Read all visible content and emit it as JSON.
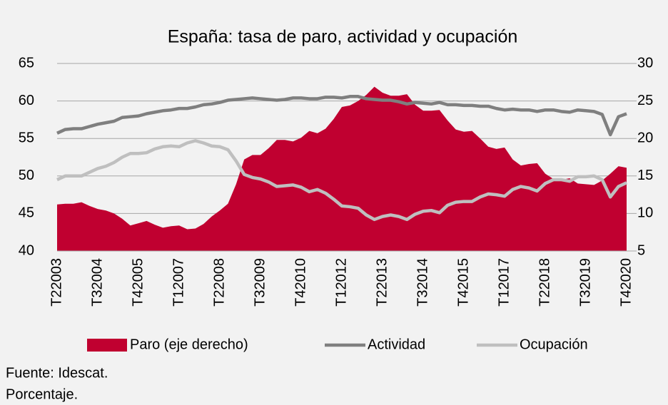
{
  "chart_data": {
    "type": "area-line",
    "title": "España: tasa de paro, actividad y ocupación",
    "categories": [
      "T22003",
      null,
      null,
      null,
      null,
      "T32004",
      null,
      null,
      null,
      null,
      "T42005",
      null,
      null,
      null,
      null,
      "T12007",
      null,
      null,
      null,
      null,
      "T22008",
      null,
      null,
      null,
      null,
      "T32009",
      null,
      null,
      null,
      null,
      "T42010",
      null,
      null,
      null,
      null,
      "T12012",
      null,
      null,
      null,
      null,
      "T22013",
      null,
      null,
      null,
      null,
      "T32014",
      null,
      null,
      null,
      null,
      "T42015",
      null,
      null,
      null,
      null,
      "T12017",
      null,
      null,
      null,
      null,
      "T22018",
      null,
      null,
      null,
      null,
      "T32019",
      null,
      null,
      null,
      null,
      "T42020"
    ],
    "series": [
      {
        "name": "Paro (eje derecho)",
        "kind": "area",
        "axis": "y2",
        "color": "#c00030",
        "values": [
          11.2,
          11.3,
          11.3,
          11.5,
          11.0,
          10.6,
          10.4,
          10.0,
          9.3,
          8.4,
          8.7,
          9.0,
          8.5,
          8.1,
          8.3,
          8.4,
          7.9,
          8.0,
          8.6,
          9.6,
          10.4,
          11.3,
          13.9,
          17.2,
          17.8,
          17.8,
          18.7,
          19.8,
          19.8,
          19.6,
          20.1,
          21.0,
          20.7,
          21.3,
          22.6,
          24.2,
          24.4,
          25.0,
          25.8,
          26.9,
          26.1,
          25.7,
          25.7,
          25.9,
          24.5,
          23.7,
          23.7,
          23.8,
          22.4,
          21.2,
          20.9,
          21.0,
          20.0,
          18.9,
          18.6,
          18.8,
          17.2,
          16.4,
          16.6,
          16.7,
          15.3,
          14.6,
          14.5,
          14.7,
          14.0,
          13.9,
          13.8,
          14.4,
          15.3,
          16.3,
          16.1
        ]
      },
      {
        "name": "Actividad",
        "kind": "line",
        "axis": "y",
        "color": "#7f7f7f",
        "values": [
          55.7,
          56.2,
          56.3,
          56.3,
          56.6,
          56.9,
          57.1,
          57.3,
          57.8,
          57.9,
          58.0,
          58.3,
          58.5,
          58.7,
          58.8,
          59.0,
          59.0,
          59.2,
          59.5,
          59.6,
          59.8,
          60.1,
          60.2,
          60.3,
          60.4,
          60.3,
          60.2,
          60.1,
          60.2,
          60.4,
          60.4,
          60.3,
          60.3,
          60.5,
          60.5,
          60.4,
          60.6,
          60.6,
          60.3,
          60.2,
          60.1,
          60.1,
          59.9,
          59.6,
          59.8,
          59.7,
          59.6,
          59.8,
          59.5,
          59.5,
          59.4,
          59.4,
          59.3,
          59.3,
          59.0,
          58.8,
          58.9,
          58.8,
          58.8,
          58.6,
          58.8,
          58.8,
          58.6,
          58.5,
          58.8,
          58.7,
          58.6,
          58.2,
          55.5,
          57.9,
          58.3
        ]
      },
      {
        "name": "Ocupación",
        "kind": "line",
        "axis": "y",
        "color": "#bfbfbf",
        "values": [
          49.5,
          50.0,
          50.0,
          50.0,
          50.5,
          51.0,
          51.3,
          51.8,
          52.5,
          53.0,
          53.0,
          53.1,
          53.6,
          53.9,
          54.0,
          53.9,
          54.4,
          54.7,
          54.4,
          54.0,
          53.9,
          53.5,
          52.0,
          50.2,
          49.8,
          49.6,
          49.2,
          48.6,
          48.7,
          48.8,
          48.5,
          47.9,
          48.2,
          47.7,
          46.9,
          46.0,
          45.9,
          45.7,
          44.8,
          44.2,
          44.6,
          44.8,
          44.6,
          44.2,
          44.9,
          45.3,
          45.4,
          45.1,
          46.1,
          46.5,
          46.6,
          46.6,
          47.2,
          47.6,
          47.5,
          47.3,
          48.2,
          48.6,
          48.4,
          48.0,
          49.0,
          49.5,
          49.5,
          49.3,
          49.9,
          49.9,
          50.0,
          49.5,
          47.2,
          48.6,
          49.1
        ]
      }
    ],
    "ylim": [
      40,
      65
    ],
    "yticks": [
      40,
      45,
      50,
      55,
      60,
      65
    ],
    "y2lim": [
      5,
      30
    ],
    "y2ticks": [
      5,
      10,
      15,
      20,
      25,
      30
    ],
    "grid": true,
    "legend": "bottom",
    "notes": [
      "Fuente: Idescat.",
      "Porcentaje."
    ]
  }
}
